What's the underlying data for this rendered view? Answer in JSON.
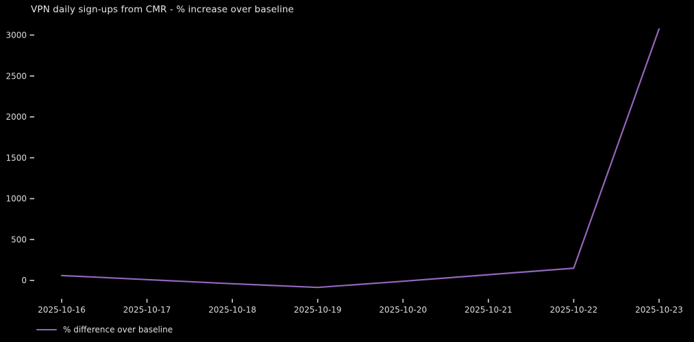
{
  "chart_data": {
    "type": "line",
    "title": "VPN daily sign-ups from CMR - % increase over baseline",
    "x": [
      "2025-10-16",
      "2025-10-17",
      "2025-10-18",
      "2025-10-19",
      "2025-10-20",
      "2025-10-21",
      "2025-10-22",
      "2025-10-23"
    ],
    "series": [
      {
        "name": "% difference over baseline",
        "values": [
          60,
          10,
          -40,
          -85,
          -10,
          70,
          150,
          3075
        ],
        "color": "#9467bd"
      }
    ],
    "yticks": [
      0,
      500,
      1000,
      1500,
      2000,
      2500,
      3000
    ],
    "ylim": [
      -210,
      3180
    ],
    "xlabel": "",
    "ylabel": "",
    "grid": false,
    "legend_position": "below-axes-lower-left",
    "background_color": "#000000",
    "text_color": "#e2e2e2",
    "tick_color": "#c9c9c9"
  }
}
